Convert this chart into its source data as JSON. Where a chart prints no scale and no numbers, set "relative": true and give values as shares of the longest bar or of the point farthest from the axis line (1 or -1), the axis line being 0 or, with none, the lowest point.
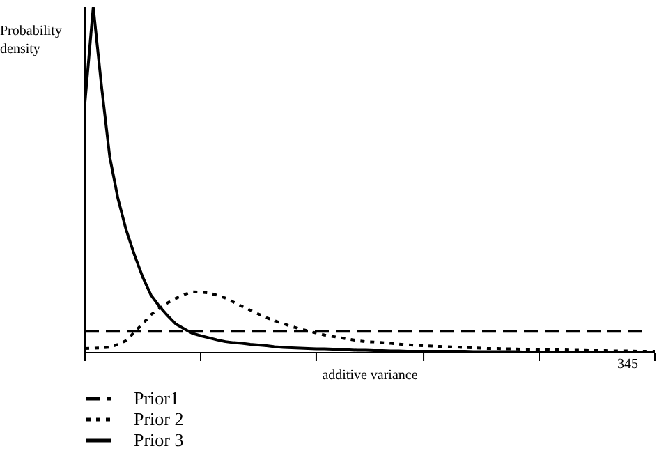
{
  "chart_data": {
    "type": "line",
    "relative": true,
    "ylabel": "Probability density",
    "xlabel": "additive variance",
    "annotations": [
      "345"
    ],
    "categories": [
      null,
      null,
      null,
      null,
      null,
      null,
      null,
      null,
      null,
      null,
      null,
      null,
      null,
      null,
      null,
      null,
      null,
      null,
      null,
      null,
      null,
      null,
      null,
      null,
      null,
      null,
      null,
      null,
      null,
      null,
      null,
      null,
      null,
      null,
      null,
      null,
      null,
      null,
      null,
      null,
      null,
      null,
      null,
      null,
      null,
      null,
      null,
      null,
      null,
      null,
      null,
      null,
      null,
      null,
      null,
      null,
      null,
      null,
      null,
      null,
      null,
      null,
      null,
      null,
      null,
      null,
      null,
      null,
      null,
      null
    ],
    "legend": "bottom left",
    "marker": "none",
    "series": [
      {
        "name": "Prior1",
        "color": "#000000",
        "line_style": "dashed",
        "values": [
          0.062,
          0.062,
          0.062,
          0.062,
          0.062,
          0.062,
          0.062,
          0.062,
          0.062,
          0.062,
          0.062,
          0.062,
          0.062,
          0.062,
          0.062,
          0.062,
          0.062,
          0.062,
          0.062,
          0.062,
          0.062,
          0.062,
          0.062,
          0.062,
          0.062,
          0.062,
          0.062,
          0.062,
          0.062,
          0.062,
          0.062,
          0.062,
          0.062,
          0.062,
          0.062,
          0.062,
          0.062,
          0.062,
          0.062,
          0.062,
          0.062,
          0.062,
          0.062,
          0.062,
          0.062,
          0.062,
          0.062,
          0.062,
          0.062,
          0.062,
          0.062,
          0.062,
          0.062,
          0.062,
          0.062,
          0.062,
          0.062,
          0.062,
          0.062,
          0.062,
          0.062,
          0.062,
          0.062,
          0.062,
          0.062,
          0.062,
          0.062,
          0.062,
          0.062,
          null
        ]
      },
      {
        "name": "Prior 2",
        "color": "#000000",
        "line_style": "dotted",
        "values": [
          0.012,
          0.013,
          0.014,
          0.016,
          0.024,
          0.035,
          0.06,
          0.084,
          0.11,
          0.128,
          0.144,
          0.157,
          0.168,
          0.176,
          0.175,
          0.173,
          0.166,
          0.158,
          0.146,
          0.134,
          0.123,
          0.112,
          0.101,
          0.092,
          0.084,
          0.076,
          0.069,
          0.063,
          0.057,
          0.051,
          0.047,
          0.043,
          0.039,
          0.035,
          0.032,
          0.031,
          0.029,
          0.027,
          0.025,
          0.023,
          0.021,
          0.02,
          0.019,
          0.018,
          0.017,
          0.016,
          0.015,
          0.014,
          0.013,
          0.012,
          0.012,
          0.011,
          0.011,
          0.01,
          0.01,
          0.009,
          0.009,
          0.008,
          0.008,
          0.007,
          0.007,
          0.006,
          0.006,
          0.006,
          0.005,
          0.005,
          0.005,
          0.004,
          0.004,
          0.004
        ]
      },
      {
        "name": "Prior 3",
        "color": "#000000",
        "line_style": "solid",
        "values": [
          0.724,
          1,
          0.771,
          0.566,
          0.445,
          0.354,
          0.282,
          0.218,
          0.166,
          0.134,
          0.107,
          0.083,
          0.069,
          0.056,
          0.049,
          0.043,
          0.037,
          0.032,
          0.029,
          0.027,
          0.024,
          0.022,
          0.02,
          0.017,
          0.015,
          0.014,
          0.013,
          0.012,
          0.011,
          0.011,
          0.01,
          0.009,
          0.008,
          0.007,
          0.007,
          0.006,
          0.006,
          0.005,
          0.005,
          0.004,
          0.004,
          0.004,
          0.004,
          0.004,
          0.004,
          0.004,
          0.004,
          0.003,
          0.003,
          0.003,
          0.003,
          0.003,
          0.003,
          0.002,
          0.002,
          0.002,
          0.002,
          0.002,
          0.002,
          0.001,
          0.001,
          0.001,
          0.001,
          0.001,
          0.001,
          0,
          0,
          0,
          0,
          0
        ]
      }
    ]
  }
}
